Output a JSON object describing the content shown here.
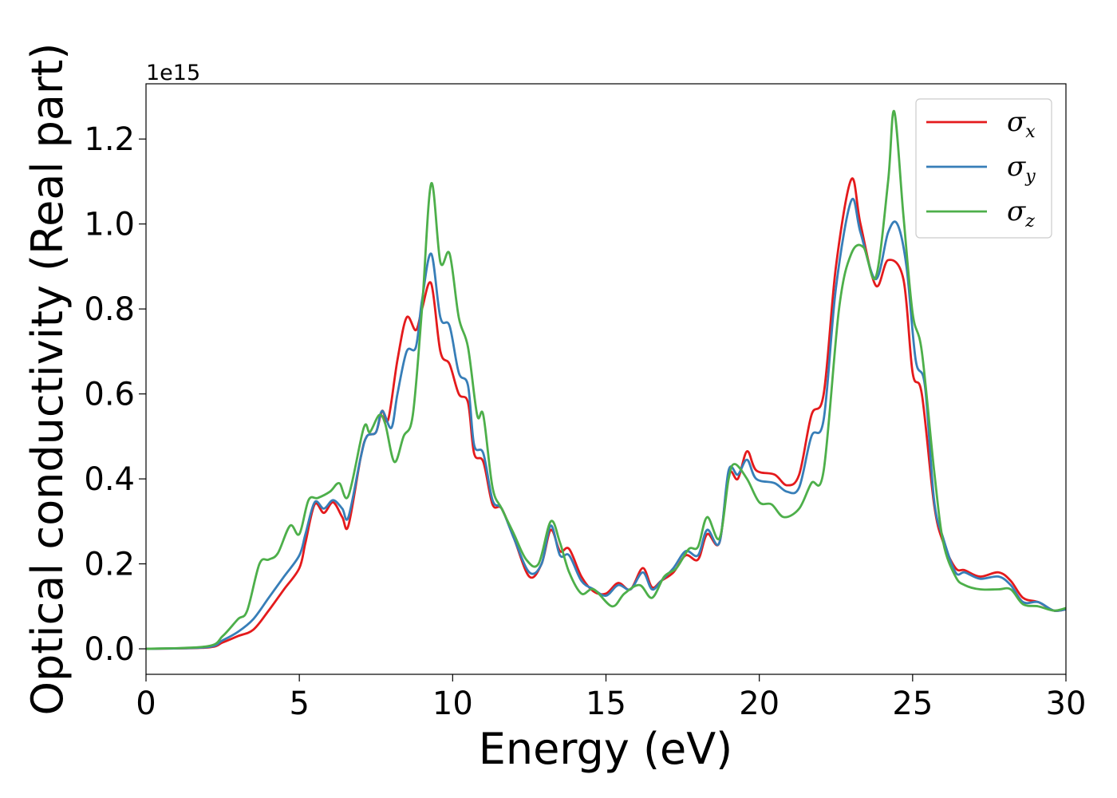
{
  "chart_data": {
    "type": "line",
    "title": "",
    "xlabel": "Energy (eV)",
    "ylabel": "Optical conductivity (Real part)",
    "y_offset_label": "1e15",
    "xlim": [
      0,
      30
    ],
    "ylim": [
      -0.06,
      1.33
    ],
    "xticks": [
      0,
      5,
      10,
      15,
      20,
      25,
      30
    ],
    "xtick_labels": [
      "0",
      "5",
      "10",
      "15",
      "20",
      "25",
      "30"
    ],
    "yticks": [
      0.0,
      0.2,
      0.4,
      0.6,
      0.8,
      1.0,
      1.2
    ],
    "ytick_labels": [
      "0.0",
      "0.2",
      "0.4",
      "0.6",
      "0.8",
      "1.0",
      "1.2"
    ],
    "grid": false,
    "legend_position": "top-right",
    "series": [
      {
        "symbol": "σ",
        "subscript": "x",
        "color": "#e41a1c",
        "points": [
          [
            0,
            0
          ],
          [
            2,
            0.003
          ],
          [
            2.5,
            0.015
          ],
          [
            3,
            0.03
          ],
          [
            3.5,
            0.045
          ],
          [
            4,
            0.09
          ],
          [
            4.5,
            0.14
          ],
          [
            5,
            0.19
          ],
          [
            5.2,
            0.25
          ],
          [
            5.5,
            0.34
          ],
          [
            5.8,
            0.32
          ],
          [
            6.1,
            0.345
          ],
          [
            6.4,
            0.31
          ],
          [
            6.6,
            0.29
          ],
          [
            7,
            0.45
          ],
          [
            7.2,
            0.5
          ],
          [
            7.5,
            0.51
          ],
          [
            7.7,
            0.56
          ],
          [
            7.9,
            0.54
          ],
          [
            8.2,
            0.68
          ],
          [
            8.5,
            0.78
          ],
          [
            8.8,
            0.75
          ],
          [
            9.0,
            0.8
          ],
          [
            9.3,
            0.86
          ],
          [
            9.6,
            0.7
          ],
          [
            9.9,
            0.67
          ],
          [
            10.2,
            0.6
          ],
          [
            10.5,
            0.58
          ],
          [
            10.7,
            0.46
          ],
          [
            11.0,
            0.44
          ],
          [
            11.3,
            0.34
          ],
          [
            11.6,
            0.33
          ],
          [
            12.0,
            0.26
          ],
          [
            12.5,
            0.17
          ],
          [
            12.9,
            0.2
          ],
          [
            13.2,
            0.28
          ],
          [
            13.5,
            0.23
          ],
          [
            13.8,
            0.235
          ],
          [
            14.2,
            0.17
          ],
          [
            14.6,
            0.135
          ],
          [
            15.0,
            0.13
          ],
          [
            15.4,
            0.155
          ],
          [
            15.8,
            0.14
          ],
          [
            16.2,
            0.19
          ],
          [
            16.5,
            0.145
          ],
          [
            16.8,
            0.16
          ],
          [
            17.2,
            0.18
          ],
          [
            17.6,
            0.22
          ],
          [
            18.0,
            0.21
          ],
          [
            18.3,
            0.27
          ],
          [
            18.7,
            0.25
          ],
          [
            19.0,
            0.41
          ],
          [
            19.3,
            0.4
          ],
          [
            19.6,
            0.465
          ],
          [
            19.9,
            0.42
          ],
          [
            20.5,
            0.41
          ],
          [
            20.9,
            0.385
          ],
          [
            21.3,
            0.41
          ],
          [
            21.7,
            0.55
          ],
          [
            22.1,
            0.6
          ],
          [
            22.5,
            0.9
          ],
          [
            23.0,
            1.105
          ],
          [
            23.3,
            1.0
          ],
          [
            23.8,
            0.855
          ],
          [
            24.2,
            0.915
          ],
          [
            24.7,
            0.87
          ],
          [
            25.0,
            0.65
          ],
          [
            25.3,
            0.6
          ],
          [
            25.7,
            0.34
          ],
          [
            26.0,
            0.25
          ],
          [
            26.4,
            0.19
          ],
          [
            26.7,
            0.185
          ],
          [
            27.2,
            0.17
          ],
          [
            27.8,
            0.18
          ],
          [
            28.2,
            0.16
          ],
          [
            28.6,
            0.12
          ],
          [
            29.1,
            0.11
          ],
          [
            29.6,
            0.09
          ],
          [
            30,
            0.093
          ]
        ]
      },
      {
        "symbol": "σ",
        "subscript": "y",
        "color": "#377eb8",
        "points": [
          [
            0,
            0
          ],
          [
            2,
            0.004
          ],
          [
            2.5,
            0.02
          ],
          [
            3,
            0.04
          ],
          [
            3.5,
            0.07
          ],
          [
            4,
            0.12
          ],
          [
            4.5,
            0.17
          ],
          [
            5,
            0.22
          ],
          [
            5.2,
            0.27
          ],
          [
            5.5,
            0.345
          ],
          [
            5.8,
            0.33
          ],
          [
            6.1,
            0.35
          ],
          [
            6.4,
            0.33
          ],
          [
            6.6,
            0.31
          ],
          [
            7,
            0.45
          ],
          [
            7.2,
            0.5
          ],
          [
            7.5,
            0.51
          ],
          [
            7.7,
            0.56
          ],
          [
            8.0,
            0.52
          ],
          [
            8.2,
            0.6
          ],
          [
            8.5,
            0.7
          ],
          [
            8.8,
            0.71
          ],
          [
            9.0,
            0.82
          ],
          [
            9.3,
            0.93
          ],
          [
            9.6,
            0.78
          ],
          [
            9.9,
            0.76
          ],
          [
            10.2,
            0.65
          ],
          [
            10.5,
            0.62
          ],
          [
            10.7,
            0.48
          ],
          [
            11.0,
            0.46
          ],
          [
            11.3,
            0.35
          ],
          [
            11.6,
            0.33
          ],
          [
            12.0,
            0.26
          ],
          [
            12.5,
            0.18
          ],
          [
            12.9,
            0.2
          ],
          [
            13.2,
            0.29
          ],
          [
            13.5,
            0.22
          ],
          [
            13.8,
            0.22
          ],
          [
            14.2,
            0.16
          ],
          [
            14.6,
            0.14
          ],
          [
            15.0,
            0.125
          ],
          [
            15.4,
            0.15
          ],
          [
            15.8,
            0.14
          ],
          [
            16.2,
            0.18
          ],
          [
            16.5,
            0.14
          ],
          [
            16.8,
            0.16
          ],
          [
            17.2,
            0.19
          ],
          [
            17.6,
            0.23
          ],
          [
            18.0,
            0.22
          ],
          [
            18.3,
            0.28
          ],
          [
            18.7,
            0.25
          ],
          [
            19.0,
            0.42
          ],
          [
            19.3,
            0.41
          ],
          [
            19.6,
            0.445
          ],
          [
            19.9,
            0.4
          ],
          [
            20.5,
            0.39
          ],
          [
            20.9,
            0.37
          ],
          [
            21.3,
            0.38
          ],
          [
            21.7,
            0.5
          ],
          [
            22.1,
            0.54
          ],
          [
            22.5,
            0.85
          ],
          [
            23.0,
            1.055
          ],
          [
            23.3,
            0.98
          ],
          [
            23.8,
            0.87
          ],
          [
            24.2,
            0.98
          ],
          [
            24.5,
            1.0
          ],
          [
            24.8,
            0.9
          ],
          [
            25.1,
            0.68
          ],
          [
            25.4,
            0.62
          ],
          [
            25.7,
            0.35
          ],
          [
            26.0,
            0.26
          ],
          [
            26.4,
            0.18
          ],
          [
            26.7,
            0.18
          ],
          [
            27.2,
            0.165
          ],
          [
            27.8,
            0.17
          ],
          [
            28.2,
            0.15
          ],
          [
            28.6,
            0.11
          ],
          [
            29.1,
            0.11
          ],
          [
            29.6,
            0.09
          ],
          [
            30,
            0.093
          ]
        ]
      },
      {
        "symbol": "σ",
        "subscript": "z",
        "color": "#4daf4a",
        "points": [
          [
            0,
            0
          ],
          [
            2,
            0.006
          ],
          [
            2.5,
            0.03
          ],
          [
            3,
            0.07
          ],
          [
            3.3,
            0.09
          ],
          [
            3.7,
            0.2
          ],
          [
            4.0,
            0.21
          ],
          [
            4.3,
            0.225
          ],
          [
            4.7,
            0.29
          ],
          [
            5.0,
            0.27
          ],
          [
            5.3,
            0.35
          ],
          [
            5.6,
            0.355
          ],
          [
            6.0,
            0.37
          ],
          [
            6.3,
            0.39
          ],
          [
            6.6,
            0.36
          ],
          [
            7.1,
            0.52
          ],
          [
            7.3,
            0.51
          ],
          [
            7.6,
            0.55
          ],
          [
            7.8,
            0.53
          ],
          [
            8.1,
            0.44
          ],
          [
            8.4,
            0.5
          ],
          [
            8.7,
            0.55
          ],
          [
            9.0,
            0.8
          ],
          [
            9.3,
            1.095
          ],
          [
            9.6,
            0.91
          ],
          [
            9.9,
            0.93
          ],
          [
            10.2,
            0.78
          ],
          [
            10.5,
            0.71
          ],
          [
            10.8,
            0.55
          ],
          [
            11.0,
            0.55
          ],
          [
            11.3,
            0.38
          ],
          [
            11.6,
            0.33
          ],
          [
            12.0,
            0.27
          ],
          [
            12.4,
            0.21
          ],
          [
            12.8,
            0.2
          ],
          [
            13.2,
            0.3
          ],
          [
            13.5,
            0.25
          ],
          [
            13.8,
            0.18
          ],
          [
            14.2,
            0.13
          ],
          [
            14.6,
            0.14
          ],
          [
            15.2,
            0.1
          ],
          [
            15.6,
            0.13
          ],
          [
            16.1,
            0.15
          ],
          [
            16.5,
            0.12
          ],
          [
            16.9,
            0.17
          ],
          [
            17.3,
            0.19
          ],
          [
            17.7,
            0.235
          ],
          [
            18.0,
            0.24
          ],
          [
            18.3,
            0.31
          ],
          [
            18.7,
            0.26
          ],
          [
            19.0,
            0.4
          ],
          [
            19.2,
            0.435
          ],
          [
            19.6,
            0.4
          ],
          [
            20.0,
            0.345
          ],
          [
            20.4,
            0.34
          ],
          [
            20.8,
            0.31
          ],
          [
            21.3,
            0.33
          ],
          [
            21.7,
            0.39
          ],
          [
            22.1,
            0.42
          ],
          [
            22.6,
            0.8
          ],
          [
            23.0,
            0.93
          ],
          [
            23.4,
            0.945
          ],
          [
            23.8,
            0.875
          ],
          [
            24.2,
            1.1
          ],
          [
            24.4,
            1.265
          ],
          [
            24.7,
            1.02
          ],
          [
            25.0,
            0.79
          ],
          [
            25.3,
            0.7
          ],
          [
            25.7,
            0.42
          ],
          [
            26.0,
            0.25
          ],
          [
            26.4,
            0.17
          ],
          [
            26.7,
            0.15
          ],
          [
            27.2,
            0.14
          ],
          [
            27.8,
            0.14
          ],
          [
            28.2,
            0.14
          ],
          [
            28.6,
            0.105
          ],
          [
            29.1,
            0.1
          ],
          [
            29.6,
            0.09
          ],
          [
            30,
            0.096
          ]
        ]
      }
    ]
  }
}
